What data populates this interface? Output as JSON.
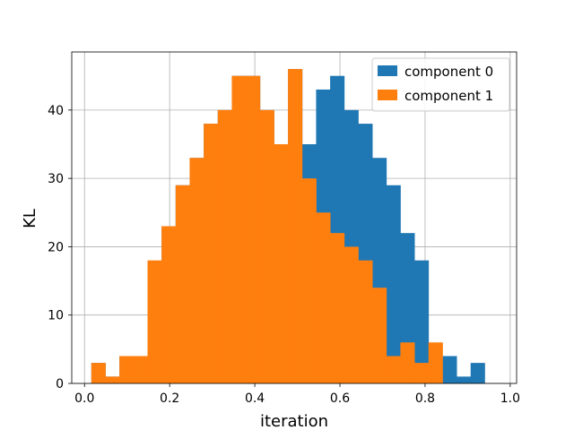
{
  "chart_data": {
    "type": "bar",
    "xlabel": "iteration",
    "ylabel": "KL",
    "xlim": [
      -0.03,
      1.015
    ],
    "ylim": [
      0,
      48.5
    ],
    "grid": true,
    "legend_position": "top-right",
    "x_ticks": [
      {
        "value": 0.0,
        "label": "0.0"
      },
      {
        "value": 0.2,
        "label": "0.2"
      },
      {
        "value": 0.4,
        "label": "0.4"
      },
      {
        "value": 0.6,
        "label": "0.6"
      },
      {
        "value": 0.8,
        "label": "0.8"
      },
      {
        "value": 1.0,
        "label": "1.0"
      }
    ],
    "y_ticks": [
      {
        "value": 0,
        "label": "0"
      },
      {
        "value": 10,
        "label": "10"
      },
      {
        "value": 20,
        "label": "20"
      },
      {
        "value": 30,
        "label": "30"
      },
      {
        "value": 40,
        "label": "40"
      }
    ],
    "series": [
      {
        "name": "component 0",
        "color": "#1f77b4",
        "bin_start": 0.016,
        "bin_width": 0.033,
        "values": [
          3,
          1,
          4,
          4,
          6,
          23,
          29,
          33,
          38,
          40,
          45,
          45,
          40,
          35,
          46,
          35,
          43,
          45,
          40,
          38,
          33,
          29,
          22,
          18,
          4,
          4,
          1,
          3
        ]
      },
      {
        "name": "component 1",
        "color": "#ff7f0e",
        "bin_start": 0.016,
        "bin_width": 0.033,
        "values": [
          3,
          1,
          4,
          4,
          18,
          23,
          29,
          33,
          38,
          40,
          45,
          45,
          40,
          35,
          46,
          30,
          25,
          22,
          20,
          18,
          14,
          4,
          6,
          3,
          6,
          0,
          0,
          0
        ]
      }
    ]
  }
}
